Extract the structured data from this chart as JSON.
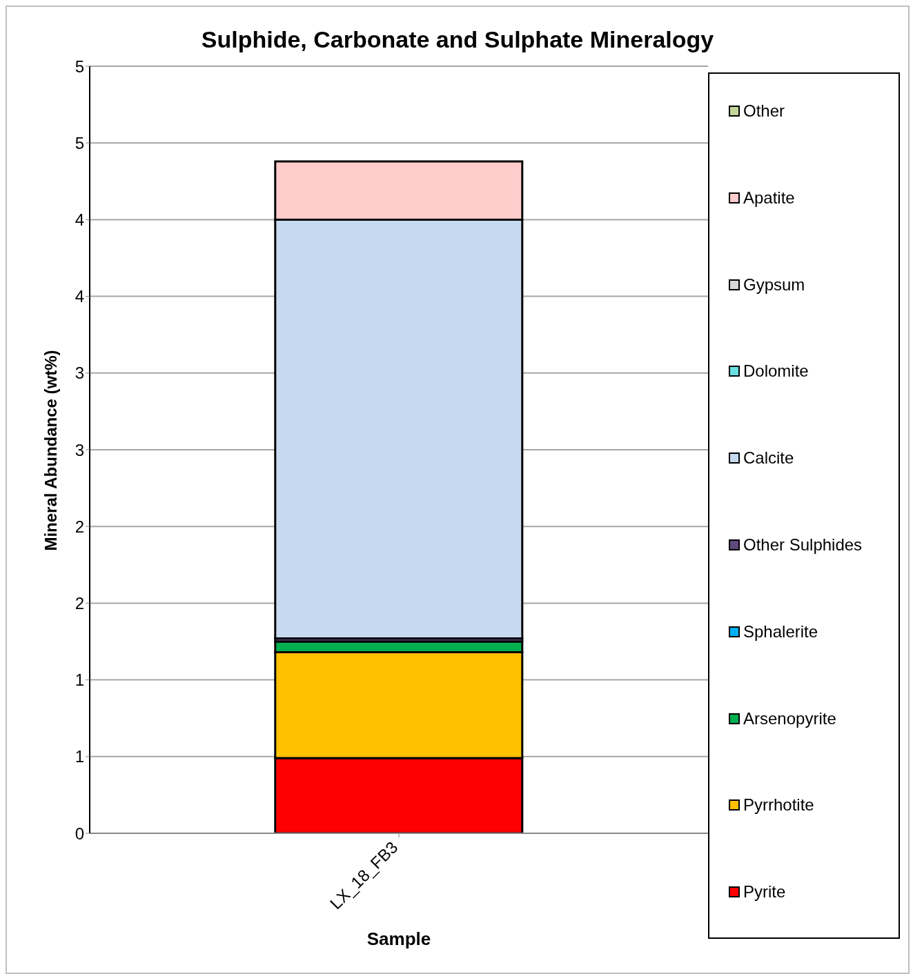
{
  "chart_data": {
    "type": "bar",
    "stacked": true,
    "title": "Sulphide, Carbonate and Sulphate Mineralogy",
    "xlabel": "Sample",
    "ylabel": "Mineral Abundance (wt%)",
    "categories": [
      "LX_18_FB3"
    ],
    "series": [
      {
        "name": "Pyrite",
        "color": "#ff0000",
        "values": [
          0.49
        ]
      },
      {
        "name": "Pyrrhotite",
        "color": "#ffc000",
        "values": [
          0.69
        ]
      },
      {
        "name": "Arsenopyrite",
        "color": "#00b050",
        "values": [
          0.07
        ]
      },
      {
        "name": "Sphalerite",
        "color": "#00b0f0",
        "values": [
          0
        ]
      },
      {
        "name": "Other Sulphides",
        "color": "#604a7b",
        "values": [
          0.02
        ]
      },
      {
        "name": "Calcite",
        "color": "#c6d9f1",
        "values": [
          2.73
        ]
      },
      {
        "name": "Dolomite",
        "color": "#66e0e0",
        "values": [
          0
        ]
      },
      {
        "name": "Gypsum",
        "color": "#d9d9d9",
        "values": [
          0
        ]
      },
      {
        "name": "Apatite",
        "color": "#ffcccc",
        "values": [
          0.38
        ]
      },
      {
        "name": "Other",
        "color": "#c3d69b",
        "values": [
          0
        ]
      }
    ],
    "ylim": [
      0,
      5
    ],
    "yticks": [
      0,
      {
        "value": 0.5,
        "label": "1"
      },
      1,
      {
        "value": 1.5,
        "label": "2"
      },
      2,
      {
        "value": 2.5,
        "label": "3"
      },
      3,
      {
        "value": 3.5,
        "label": "4"
      },
      4,
      {
        "value": 4.5,
        "label": "5"
      },
      5
    ],
    "grid": "y",
    "legend": "right"
  }
}
